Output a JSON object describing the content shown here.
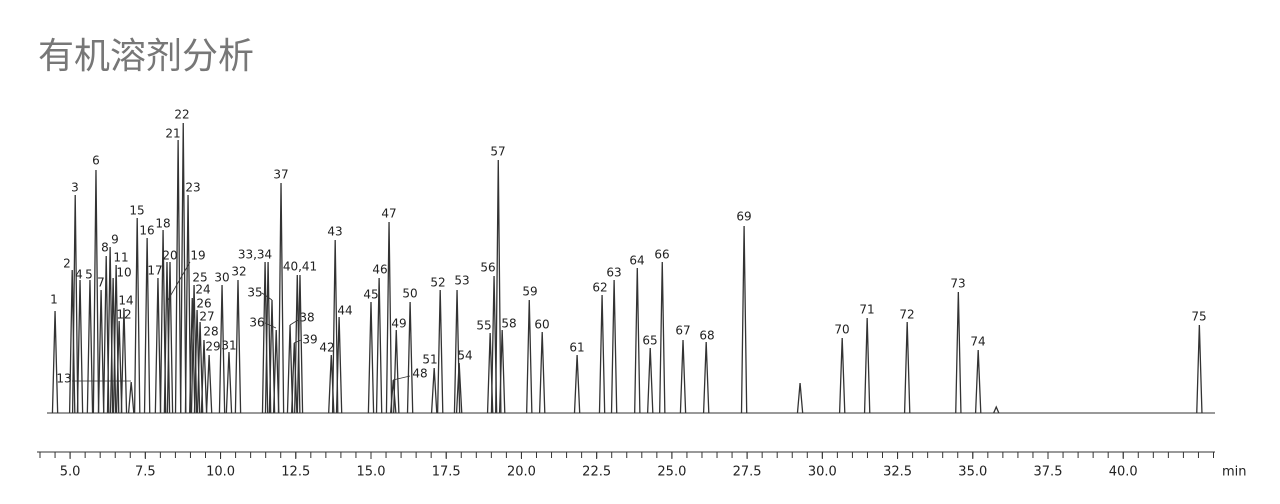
{
  "chart_data": {
    "type": "chromatogram",
    "title": "有机溶剂分析",
    "x_label": "min",
    "x": [
      4.5,
      5.07,
      5.17,
      5.33,
      5.66,
      5.86,
      6.03,
      6.2,
      6.33,
      6.43,
      6.53,
      6.63,
      7.03,
      6.79,
      7.23,
      7.56,
      7.92,
      8.09,
      8.22,
      8.32,
      8.59,
      8.76,
      8.92,
      9.06,
      9.12,
      9.22,
      9.32,
      9.45,
      9.62,
      10.05,
      10.28,
      10.58,
      11.48,
      11.58,
      11.71,
      11.85,
      12.01,
      12.31,
      12.45,
      12.55,
      12.64,
      13.68,
      13.81,
      13.94,
      15.0,
      15.27,
      15.6,
      15.74,
      15.84,
      16.3,
      17.1,
      17.3,
      17.86,
      17.93,
      18.96,
      19.09,
      19.23,
      19.36,
      20.26,
      20.69,
      21.85,
      22.68,
      23.08,
      23.85,
      24.28,
      24.68,
      25.37,
      26.14,
      27.4,
      29.26,
      30.66,
      31.49,
      32.82,
      34.52,
      35.18,
      35.78,
      42.53
    ],
    "values": [
      102,
      143,
      218,
      133,
      133,
      243,
      123,
      157,
      166,
      135,
      148,
      92,
      31,
      105,
      195,
      175,
      135,
      183,
      151,
      151,
      273,
      290,
      218,
      115,
      128,
      103,
      91,
      73,
      58,
      128,
      61,
      133,
      151,
      151,
      113,
      83,
      230,
      88,
      70,
      138,
      138,
      58,
      173,
      96,
      111,
      135,
      191,
      33,
      83,
      111,
      45,
      123,
      123,
      50,
      80,
      137,
      253,
      83,
      113,
      81,
      58,
      118,
      133,
      145,
      65,
      151,
      73,
      71,
      187,
      30,
      75,
      95,
      91,
      121,
      63,
      6,
      88
    ],
    "labels": [
      "1",
      "2",
      "3",
      "4",
      "5",
      "6",
      "7",
      "8",
      "9",
      "10",
      "11",
      "12",
      "13",
      "14",
      "15",
      "16",
      "17",
      "18",
      "19",
      "20",
      "21",
      "22",
      "23",
      "24",
      "25",
      "26",
      "27",
      "28",
      "29",
      "30",
      "31",
      "32",
      "33,34",
      null,
      "35",
      "36",
      "37",
      "38",
      "39",
      "40,41",
      null,
      "42",
      "43",
      "44",
      "45",
      "46",
      "47",
      "48",
      "49",
      "50",
      "51",
      "52",
      "53",
      "54",
      "55",
      "56",
      "57",
      "58",
      "59",
      "60",
      "61",
      "62",
      "63",
      "64",
      "65",
      "66",
      "67",
      "68",
      "69",
      null,
      "70",
      "71",
      "72",
      "73",
      "74",
      null,
      "75"
    ],
    "color": "#333333",
    "xlim": [
      3.9,
      43.05
    ],
    "ylim": [
      0,
      300
    ],
    "xticks": [
      {
        "value": 5,
        "label": "5.0"
      },
      {
        "value": 7.5,
        "label": "7.5"
      },
      {
        "value": 10,
        "label": "10.0"
      },
      {
        "value": 12.5,
        "label": "12.5"
      },
      {
        "value": 15,
        "label": "15.0"
      },
      {
        "value": 17.5,
        "label": "17.5"
      },
      {
        "value": 20,
        "label": "20.0"
      },
      {
        "value": 22.5,
        "label": "22.5"
      },
      {
        "value": 25,
        "label": "25.0"
      },
      {
        "value": 27.5,
        "label": "27.5"
      },
      {
        "value": 30,
        "label": "30.0"
      },
      {
        "value": 32.5,
        "label": "32.5"
      },
      {
        "value": 35,
        "label": "35.0"
      },
      {
        "value": 37.5,
        "label": "37.5"
      },
      {
        "value": 40,
        "label": "40.0"
      }
    ],
    "xminor_ticks": [
      4,
      4.5,
      5,
      5.5,
      6,
      6.5,
      7,
      7.5,
      8,
      8.5,
      9,
      9.5,
      10,
      10.5,
      11,
      11.5,
      12,
      12.5,
      13,
      13.5,
      14,
      14.5,
      15,
      15.5,
      16,
      16.5,
      17,
      17.5,
      18,
      18.5,
      19,
      19.5,
      20,
      20.5,
      21,
      21.5,
      22,
      22.5,
      23,
      23.5,
      24,
      24.5,
      25,
      25.5,
      26,
      26.5,
      27,
      27.5,
      28,
      28.5,
      29,
      29.5,
      30,
      30.5,
      31,
      31.5,
      32,
      32.5,
      33,
      33.5,
      34,
      34.5,
      35,
      35.5,
      36,
      36.5,
      37,
      37.5,
      38,
      38.5,
      39,
      39.5,
      40,
      40.5,
      41,
      41.5,
      42,
      42.5,
      43
    ]
  }
}
